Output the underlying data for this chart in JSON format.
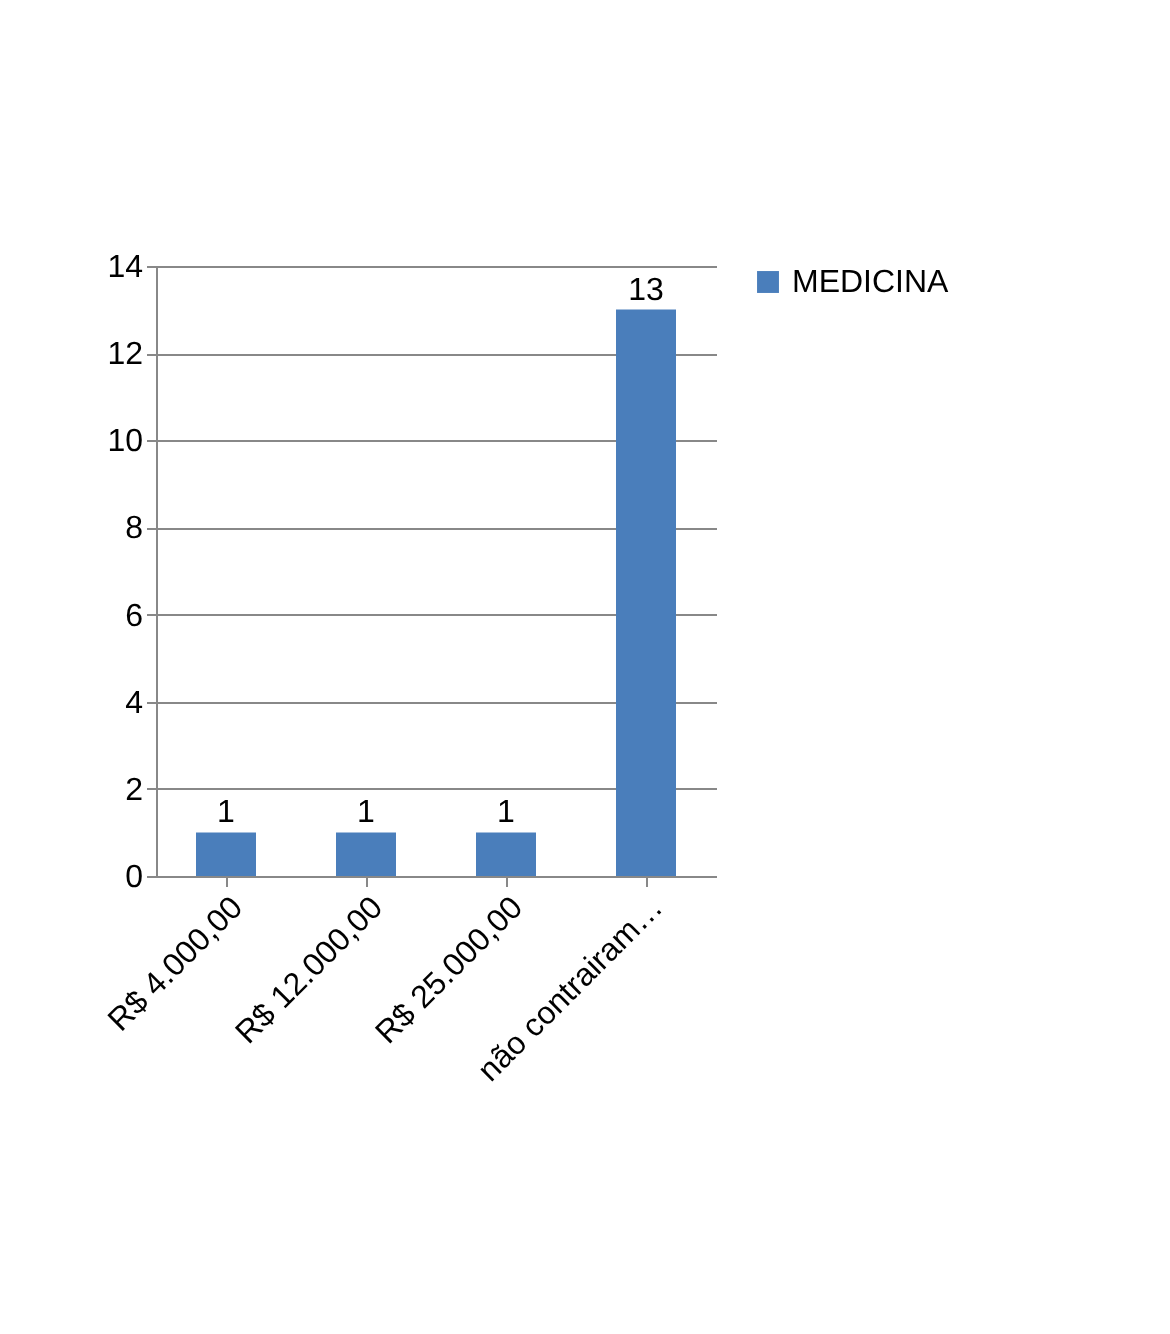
{
  "chart_data": {
    "type": "bar",
    "categories": [
      "R$ 4.000,00",
      "R$ 12.000,00",
      "R$ 25.000,00",
      "não contrairam…"
    ],
    "series": [
      {
        "name": "MEDICINA",
        "color": "#4a7ebb",
        "values": [
          1,
          1,
          1,
          13
        ]
      }
    ],
    "ylim": [
      0,
      14
    ],
    "yticks": [
      0,
      2,
      4,
      6,
      8,
      10,
      12,
      14
    ],
    "grid": "y",
    "legend": "right",
    "data_labels": true
  }
}
